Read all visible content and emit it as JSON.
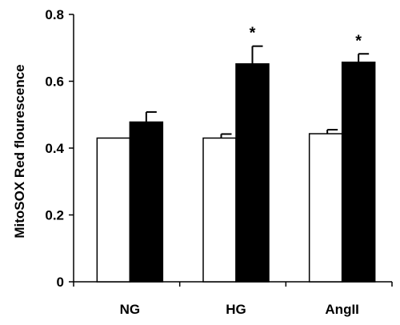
{
  "chart_data": {
    "type": "bar",
    "title": "",
    "xlabel": "",
    "ylabel": "MitoSOX Red flourescence",
    "ylim": [
      0,
      0.8
    ],
    "yticks": [
      "0",
      "0.2",
      "0.4",
      "0.6",
      "0.8"
    ],
    "categories": [
      "NG",
      "HG",
      "AngII"
    ],
    "series": [
      {
        "values": [
          0.43,
          0.43,
          0.443
        ],
        "errors": [
          0.0,
          0.012,
          0.012
        ],
        "fill": "#ffffff"
      },
      {
        "values": [
          0.478,
          0.652,
          0.657
        ],
        "errors": [
          0.03,
          0.053,
          0.025
        ],
        "fill": "#000000"
      }
    ],
    "significance": [
      "",
      "*",
      "*"
    ],
    "grid": false,
    "legend": "none"
  }
}
